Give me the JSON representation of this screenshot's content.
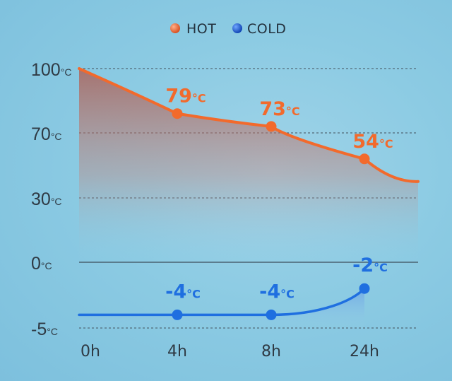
{
  "chart_data": {
    "type": "line",
    "categories": [
      "0h",
      "4h",
      "8h",
      "24h"
    ],
    "ylim": [
      -5,
      100
    ],
    "y_ticks": [
      {
        "value": 100,
        "label": "100",
        "unit": "°C"
      },
      {
        "value": 70,
        "label": "70",
        "unit": "°C"
      },
      {
        "value": 30,
        "label": "30",
        "unit": "°C"
      },
      {
        "value": 0,
        "label": "0",
        "unit": "°C"
      },
      {
        "value": -5,
        "label": "-5",
        "unit": "°C"
      }
    ],
    "grid": true,
    "legend_position": "top-center",
    "series": [
      {
        "name": "HOT",
        "color": "#f26a2c",
        "values": [
          100,
          79,
          73,
          54
        ],
        "data_labels": [
          "",
          "79",
          "73",
          "54"
        ]
      },
      {
        "name": "COLD",
        "color": "#1f6fe0",
        "values": [
          -5,
          -4,
          -4,
          -2
        ],
        "data_labels": [
          "",
          "-4",
          "-4",
          "-2"
        ]
      }
    ],
    "label_unit": "°C"
  }
}
